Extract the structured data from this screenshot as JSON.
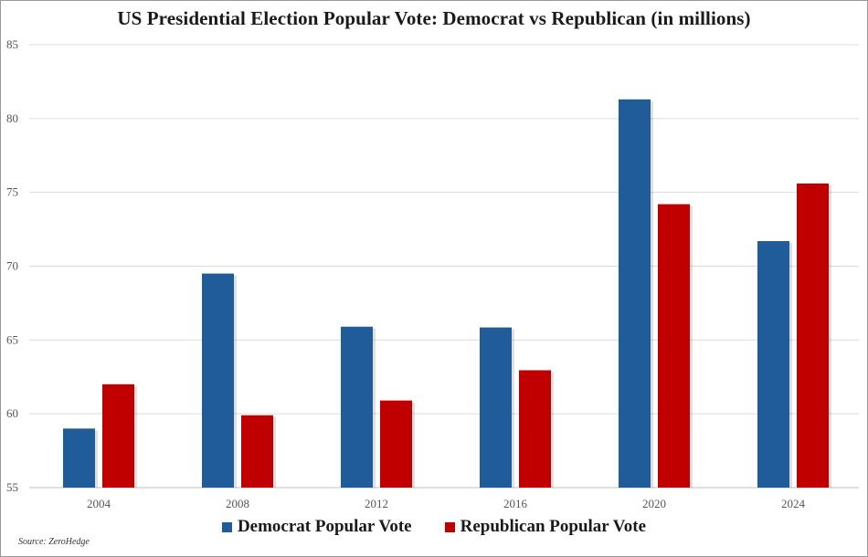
{
  "chart_data": {
    "type": "bar",
    "title": "US Presidential Election Popular Vote: Democrat vs Republican (in millions)",
    "categories": [
      "2004",
      "2008",
      "2012",
      "2016",
      "2020",
      "2024"
    ],
    "series": [
      {
        "name": "Democrat Popular Vote",
        "color": "#1f5c99",
        "values": [
          59.0,
          69.5,
          65.9,
          65.85,
          81.3,
          71.7
        ]
      },
      {
        "name": "Republican Popular Vote",
        "color": "#c00000",
        "values": [
          62.0,
          59.9,
          60.9,
          62.95,
          74.2,
          75.6
        ]
      }
    ],
    "ylim": [
      55,
      85
    ],
    "yticks": [
      "55",
      "60",
      "65",
      "70",
      "75",
      "80",
      "85"
    ],
    "xlabel": "",
    "ylabel": "",
    "grid": true,
    "legend": "bottom-center"
  },
  "source": "Source: ZeroHedge"
}
